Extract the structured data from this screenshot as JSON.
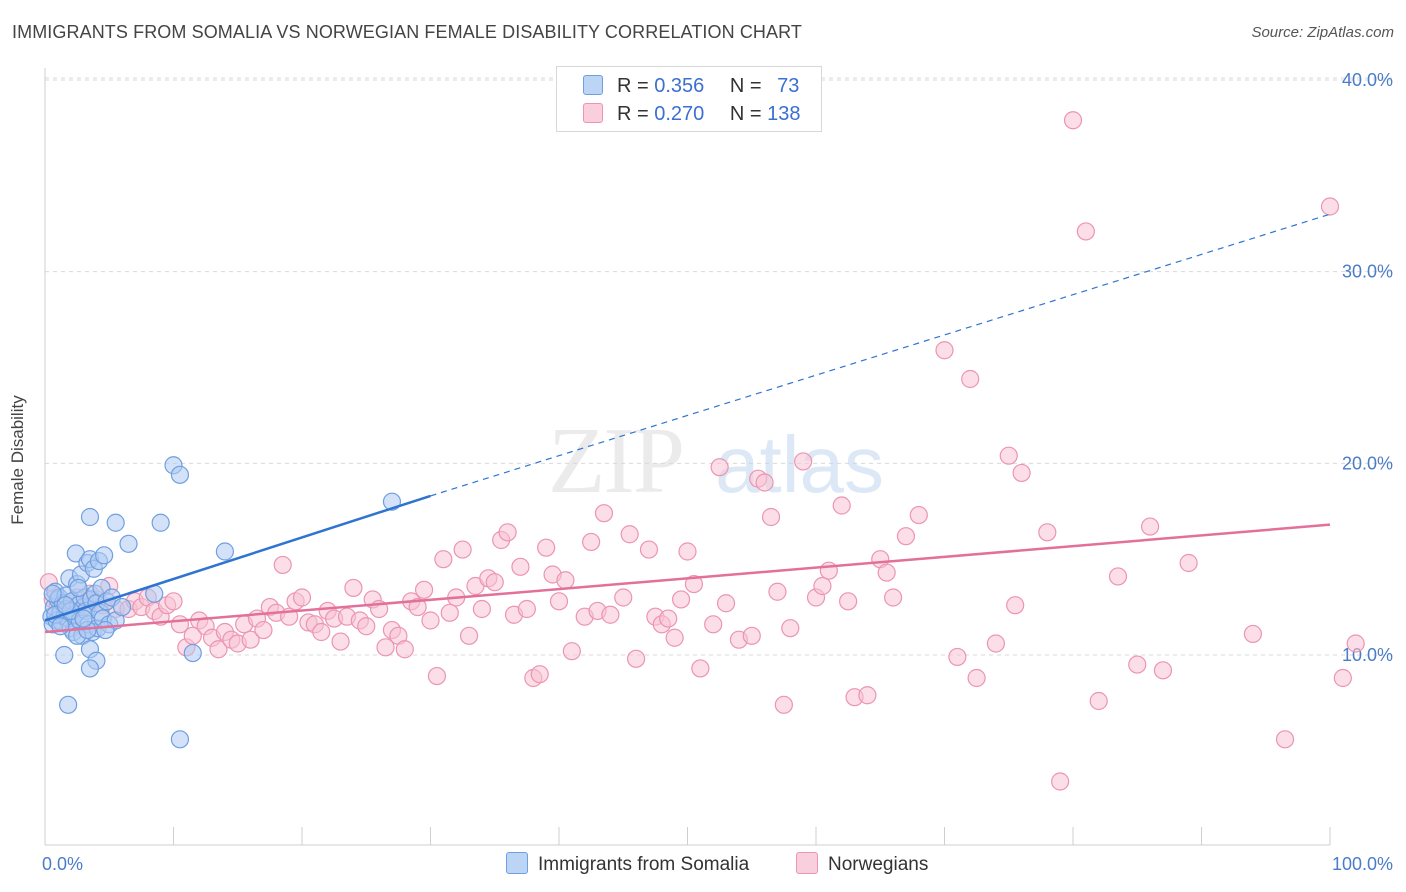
{
  "title": "IMMIGRANTS FROM SOMALIA VS NORWEGIAN FEMALE DISABILITY CORRELATION CHART",
  "source": "Source: ZipAtlas.com",
  "watermark": {
    "zip": "ZIP",
    "atlas": "atlas"
  },
  "legend": {
    "rows": [
      {
        "r_label": "R =",
        "r_value": "0.356",
        "n_label": "N =",
        "n_value": "73"
      },
      {
        "r_label": "R =",
        "r_value": "0.270",
        "n_label": "N =",
        "n_value": "138"
      }
    ]
  },
  "colors": {
    "somalia_fill": "#aecbf2",
    "somalia_stroke": "#6f9fe0",
    "somalia_line": "#2f74d0",
    "norwegian_fill": "#f7c3d3",
    "norwegian_stroke": "#ec94b2",
    "norwegian_line": "#e3709a"
  },
  "chart_data": {
    "type": "scatter",
    "title": "IMMIGRANTS FROM SOMALIA VS NORWEGIAN FEMALE DISABILITY CORRELATION CHART",
    "xlabel": "",
    "ylabel": "Female Disability",
    "xlim": [
      0,
      100
    ],
    "ylim": [
      0,
      42
    ],
    "y_ticks": [
      10,
      20,
      30,
      40
    ],
    "y_tick_labels": [
      "10.0%",
      "20.0%",
      "30.0%",
      "40.0%"
    ],
    "x_tick_labels": [
      "0.0%",
      "100.0%"
    ],
    "grid": true,
    "legend_position": "top-center",
    "series": [
      {
        "name": "Immigrants from Somalia",
        "r": 0.356,
        "n": 73,
        "trend": {
          "x0": 0,
          "y0": 11.8,
          "x1": 30,
          "y1": 18.3,
          "dashed_to_x": 100,
          "dashed_to_y": 33.0
        },
        "points": [
          [
            0.5,
            12.0
          ],
          [
            0.6,
            11.6
          ],
          [
            0.7,
            12.5
          ],
          [
            0.8,
            13.3
          ],
          [
            0.9,
            11.8
          ],
          [
            1.0,
            12.9
          ],
          [
            1.1,
            13.0
          ],
          [
            1.2,
            12.2
          ],
          [
            1.3,
            11.7
          ],
          [
            1.4,
            12.7
          ],
          [
            1.5,
            12.0
          ],
          [
            1.6,
            13.1
          ],
          [
            1.7,
            12.4
          ],
          [
            1.8,
            11.9
          ],
          [
            1.9,
            14.0
          ],
          [
            2.0,
            11.4
          ],
          [
            2.1,
            12.8
          ],
          [
            2.2,
            11.2
          ],
          [
            2.3,
            12.1
          ],
          [
            2.4,
            15.3
          ],
          [
            2.5,
            13.7
          ],
          [
            2.6,
            12.6
          ],
          [
            2.7,
            11.8
          ],
          [
            2.8,
            14.2
          ],
          [
            2.9,
            11.0
          ],
          [
            3.0,
            12.5
          ],
          [
            3.1,
            13.0
          ],
          [
            3.2,
            12.3
          ],
          [
            3.3,
            14.8
          ],
          [
            3.4,
            11.6
          ],
          [
            3.5,
            15.0
          ],
          [
            3.6,
            12.9
          ],
          [
            3.7,
            11.2
          ],
          [
            3.8,
            14.5
          ],
          [
            3.9,
            13.2
          ],
          [
            4.0,
            12.7
          ],
          [
            4.1,
            11.4
          ],
          [
            4.2,
            14.9
          ],
          [
            4.3,
            12.2
          ],
          [
            4.4,
            13.5
          ],
          [
            4.5,
            11.9
          ],
          [
            4.6,
            15.2
          ],
          [
            4.8,
            12.8
          ],
          [
            5.0,
            11.6
          ],
          [
            5.2,
            13.0
          ],
          [
            5.5,
            11.8
          ],
          [
            1.5,
            10.0
          ],
          [
            3.5,
            10.3
          ],
          [
            4.0,
            9.7
          ],
          [
            3.5,
            9.3
          ],
          [
            2.5,
            11.0
          ],
          [
            3.3,
            11.3
          ],
          [
            1.8,
            7.4
          ],
          [
            3.5,
            17.2
          ],
          [
            5.5,
            16.9
          ],
          [
            6.5,
            15.8
          ],
          [
            8.5,
            13.2
          ],
          [
            9.0,
            16.9
          ],
          [
            10.0,
            19.9
          ],
          [
            10.5,
            19.4
          ],
          [
            14.0,
            15.4
          ],
          [
            27.0,
            18.0
          ],
          [
            10.5,
            5.6
          ],
          [
            11.5,
            10.1
          ],
          [
            0.8,
            12.1
          ],
          [
            1.2,
            11.5
          ],
          [
            2.0,
            12.3
          ],
          [
            2.6,
            13.5
          ],
          [
            3.0,
            11.9
          ],
          [
            4.7,
            11.3
          ],
          [
            6.0,
            12.5
          ],
          [
            0.6,
            13.2
          ],
          [
            1.6,
            12.6
          ]
        ]
      },
      {
        "name": "Norwegians",
        "r": 0.27,
        "n": 138,
        "trend": {
          "x0": 0,
          "y0": 11.2,
          "x1": 100,
          "y1": 16.8
        },
        "points": [
          [
            0.3,
            13.8
          ],
          [
            0.6,
            12.9
          ],
          [
            1.0,
            12.6
          ],
          [
            1.5,
            12.2
          ],
          [
            2.0,
            11.8
          ],
          [
            2.5,
            13.0
          ],
          [
            3.0,
            12.5
          ],
          [
            3.5,
            13.2
          ],
          [
            4.0,
            12.9
          ],
          [
            4.5,
            12.6
          ],
          [
            5.0,
            13.6
          ],
          [
            5.5,
            12.4
          ],
          [
            6.5,
            12.4
          ],
          [
            7.0,
            12.8
          ],
          [
            7.5,
            12.5
          ],
          [
            8.0,
            13.0
          ],
          [
            8.5,
            12.3
          ],
          [
            9.0,
            12.0
          ],
          [
            9.5,
            12.6
          ],
          [
            10.0,
            12.8
          ],
          [
            10.5,
            11.6
          ],
          [
            11.0,
            10.4
          ],
          [
            11.5,
            11.0
          ],
          [
            12.0,
            11.8
          ],
          [
            12.5,
            11.5
          ],
          [
            13.0,
            10.9
          ],
          [
            13.5,
            10.3
          ],
          [
            14.0,
            11.2
          ],
          [
            14.5,
            10.8
          ],
          [
            15.0,
            10.6
          ],
          [
            15.5,
            11.6
          ],
          [
            16.0,
            10.8
          ],
          [
            16.5,
            11.9
          ],
          [
            17.0,
            11.3
          ],
          [
            17.5,
            12.5
          ],
          [
            18.0,
            12.2
          ],
          [
            18.5,
            14.7
          ],
          [
            19.0,
            12.0
          ],
          [
            19.5,
            12.8
          ],
          [
            20.0,
            13.0
          ],
          [
            20.5,
            11.7
          ],
          [
            21.0,
            11.6
          ],
          [
            21.5,
            11.2
          ],
          [
            22.0,
            12.3
          ],
          [
            22.5,
            11.9
          ],
          [
            23.0,
            10.7
          ],
          [
            23.5,
            12.0
          ],
          [
            24.0,
            13.5
          ],
          [
            24.5,
            11.8
          ],
          [
            25.0,
            11.5
          ],
          [
            25.5,
            12.9
          ],
          [
            26.0,
            12.4
          ],
          [
            26.5,
            10.4
          ],
          [
            27.0,
            11.3
          ],
          [
            27.5,
            11.0
          ],
          [
            28.0,
            10.3
          ],
          [
            28.5,
            12.8
          ],
          [
            29.0,
            12.5
          ],
          [
            29.5,
            13.4
          ],
          [
            30.0,
            11.8
          ],
          [
            30.5,
            8.9
          ],
          [
            31.0,
            15.0
          ],
          [
            31.5,
            12.2
          ],
          [
            32.0,
            13.0
          ],
          [
            32.5,
            15.5
          ],
          [
            33.0,
            11.0
          ],
          [
            33.5,
            13.6
          ],
          [
            34.0,
            12.4
          ],
          [
            34.5,
            14.0
          ],
          [
            35.0,
            13.8
          ],
          [
            35.5,
            16.0
          ],
          [
            36.0,
            16.4
          ],
          [
            36.5,
            12.1
          ],
          [
            37.0,
            14.6
          ],
          [
            37.5,
            12.4
          ],
          [
            38.0,
            8.8
          ],
          [
            38.5,
            9.0
          ],
          [
            39.0,
            15.6
          ],
          [
            39.5,
            14.2
          ],
          [
            40.0,
            12.8
          ],
          [
            40.5,
            13.9
          ],
          [
            41.0,
            10.2
          ],
          [
            42.0,
            12.0
          ],
          [
            42.5,
            15.9
          ],
          [
            43.0,
            12.3
          ],
          [
            43.5,
            17.4
          ],
          [
            44.0,
            12.1
          ],
          [
            45.0,
            13.0
          ],
          [
            45.5,
            16.3
          ],
          [
            46.0,
            9.8
          ],
          [
            47.0,
            15.5
          ],
          [
            47.5,
            12.0
          ],
          [
            48.0,
            11.6
          ],
          [
            48.5,
            11.9
          ],
          [
            49.0,
            10.9
          ],
          [
            49.5,
            12.9
          ],
          [
            50.0,
            15.4
          ],
          [
            50.5,
            13.7
          ],
          [
            51.0,
            9.3
          ],
          [
            52.0,
            11.6
          ],
          [
            52.5,
            19.8
          ],
          [
            53.0,
            12.7
          ],
          [
            54.0,
            10.8
          ],
          [
            55.0,
            11.0
          ],
          [
            55.5,
            19.2
          ],
          [
            56.0,
            19.0
          ],
          [
            56.5,
            17.2
          ],
          [
            57.0,
            13.3
          ],
          [
            57.5,
            7.4
          ],
          [
            58.0,
            11.4
          ],
          [
            59.0,
            20.1
          ],
          [
            60.0,
            13.0
          ],
          [
            60.5,
            13.6
          ],
          [
            61.0,
            14.4
          ],
          [
            62.0,
            17.8
          ],
          [
            62.5,
            12.8
          ],
          [
            63.0,
            7.8
          ],
          [
            64.0,
            7.9
          ],
          [
            65.0,
            15.0
          ],
          [
            65.5,
            14.3
          ],
          [
            66.0,
            13.0
          ],
          [
            67.0,
            16.2
          ],
          [
            68.0,
            17.3
          ],
          [
            70.0,
            25.9
          ],
          [
            71.0,
            9.9
          ],
          [
            72.0,
            24.4
          ],
          [
            72.5,
            8.8
          ],
          [
            74.0,
            10.6
          ],
          [
            75.0,
            20.4
          ],
          [
            75.5,
            12.6
          ],
          [
            76.0,
            19.5
          ],
          [
            78.0,
            16.4
          ],
          [
            79.0,
            3.4
          ],
          [
            80.0,
            37.9
          ],
          [
            81.0,
            32.1
          ],
          [
            82.0,
            7.6
          ],
          [
            83.5,
            14.1
          ],
          [
            85.0,
            9.5
          ],
          [
            86.0,
            16.7
          ],
          [
            87.0,
            9.2
          ],
          [
            89.0,
            14.8
          ],
          [
            94.0,
            11.1
          ],
          [
            96.5,
            5.6
          ],
          [
            100.0,
            33.4
          ],
          [
            101.0,
            8.8
          ],
          [
            102.0,
            10.6
          ]
        ]
      }
    ]
  },
  "bottom_legend": [
    "Immigrants from Somalia",
    "Norwegians"
  ]
}
